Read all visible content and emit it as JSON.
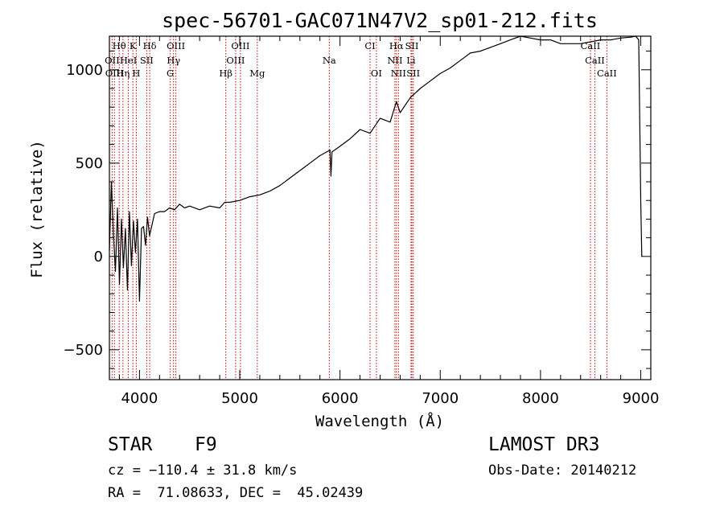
{
  "chart_data": {
    "type": "line",
    "title": "spec-56701-GAC071N47V2_sp01-212.fits",
    "xlabel": "Wavelength (Å)",
    "ylabel": "Flux (relative)",
    "xlim": [
      3700,
      9100
    ],
    "ylim": [
      -660,
      1180
    ],
    "xticks": [
      4000,
      5000,
      6000,
      7000,
      8000,
      9000
    ],
    "yticks": [
      -500,
      0,
      500,
      1000
    ],
    "series": [
      {
        "name": "spectrum",
        "x": [
          3700,
          3720,
          3740,
          3760,
          3780,
          3800,
          3820,
          3840,
          3860,
          3880,
          3900,
          3920,
          3940,
          3960,
          3980,
          4000,
          4020,
          4040,
          4060,
          4080,
          4100,
          4150,
          4200,
          4250,
          4300,
          4350,
          4400,
          4450,
          4500,
          4600,
          4700,
          4800,
          4850,
          4900,
          5000,
          5100,
          5200,
          5300,
          5400,
          5500,
          5600,
          5700,
          5800,
          5900,
          5910,
          5920,
          6000,
          6100,
          6200,
          6300,
          6400,
          6500,
          6563,
          6600,
          6700,
          6800,
          6900,
          7000,
          7100,
          7200,
          7300,
          7400,
          7500,
          7600,
          7700,
          7800,
          7900,
          8000,
          8100,
          8200,
          8300,
          8400,
          8500,
          8600,
          8700,
          8800,
          8900,
          8950,
          8980,
          9000,
          9010
        ],
        "y": [
          30,
          400,
          120,
          -80,
          260,
          -150,
          200,
          -60,
          150,
          -180,
          240,
          -50,
          190,
          20,
          200,
          -240,
          150,
          160,
          60,
          210,
          110,
          230,
          240,
          240,
          260,
          250,
          280,
          260,
          270,
          250,
          270,
          260,
          290,
          290,
          300,
          320,
          330,
          350,
          380,
          420,
          460,
          500,
          540,
          570,
          430,
          560,
          590,
          630,
          680,
          660,
          740,
          720,
          830,
          770,
          850,
          900,
          940,
          980,
          1010,
          1050,
          1090,
          1100,
          1120,
          1140,
          1160,
          1180,
          1170,
          1160,
          1160,
          1140,
          1140,
          1140,
          1150,
          1160,
          1160,
          1170,
          1175,
          1180,
          1160,
          300,
          0
        ]
      }
    ],
    "lines_top": [
      {
        "label": "Hθ",
        "x": 3798,
        "row": 0
      },
      {
        "label": "K",
        "x": 3934,
        "row": 0
      },
      {
        "label": "Hδ",
        "x": 4102,
        "row": 0
      },
      {
        "label": "OIII",
        "x": 4363,
        "row": 0
      },
      {
        "label": "OIII",
        "x": 5007,
        "row": 0
      },
      {
        "label": "CI",
        "x": 6300,
        "row": 0
      },
      {
        "label": "Hα",
        "x": 6563,
        "row": 0
      },
      {
        "label": "SII",
        "x": 6717,
        "row": 0
      },
      {
        "label": "CaII",
        "x": 8498,
        "row": 0
      },
      {
        "label": "OII",
        "x": 3727,
        "row": 1
      },
      {
        "label": "HeI",
        "x": 3889,
        "row": 1
      },
      {
        "label": "SII",
        "x": 4072,
        "row": 1
      },
      {
        "label": "Hγ",
        "x": 4340,
        "row": 1
      },
      {
        "label": "OIII",
        "x": 4959,
        "row": 1
      },
      {
        "label": "Na",
        "x": 5893,
        "row": 1
      },
      {
        "label": "NII",
        "x": 6548,
        "row": 1
      },
      {
        "label": "Li",
        "x": 6708,
        "row": 1
      },
      {
        "label": "CaII",
        "x": 8542,
        "row": 1
      },
      {
        "label": "OIII",
        "x": 3750,
        "row": 2
      },
      {
        "label": "Hη",
        "x": 3835,
        "row": 2
      },
      {
        "label": "H",
        "x": 3968,
        "row": 2
      },
      {
        "label": "G",
        "x": 4307,
        "row": 2
      },
      {
        "label": "Hβ",
        "x": 4861,
        "row": 2
      },
      {
        "label": "Mg",
        "x": 5175,
        "row": 2
      },
      {
        "label": "OI",
        "x": 6363,
        "row": 2
      },
      {
        "label": "NII",
        "x": 6583,
        "row": 2
      },
      {
        "label": "SII",
        "x": 6731,
        "row": 2
      },
      {
        "label": "CaII",
        "x": 8662,
        "row": 2
      }
    ]
  },
  "info": {
    "object_class": "STAR",
    "subclass": "F9",
    "survey": "LAMOST DR3",
    "cz": "cz = −110.4 ± 31.8 km/s",
    "obs_date": "Obs-Date: 20140212",
    "coords": "RA =  71.08633, DEC =  45.02439"
  }
}
